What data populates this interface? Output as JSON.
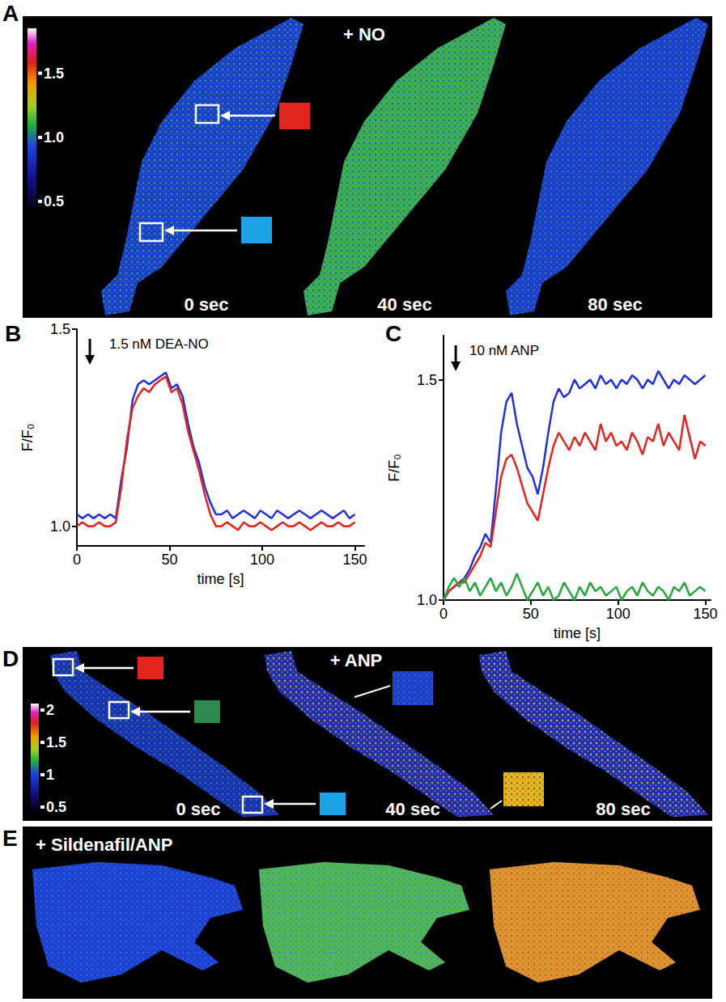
{
  "chart_data": [
    {
      "panel": "B",
      "type": "line",
      "title": "1.5 nM DEA-NO",
      "x_label": "time [s]",
      "y_label": "F/F₀",
      "stimulus_time": 7,
      "grid": false,
      "xlim": [
        0,
        155
      ],
      "xticks": [
        0,
        50,
        100,
        150
      ],
      "ylim": [
        0.95,
        1.5
      ],
      "yticks": [
        {
          "value": 1,
          "label": "1.0"
        },
        {
          "value": 1.5,
          "label": "1.5"
        }
      ],
      "x": [
        0,
        3,
        6,
        9,
        12,
        15,
        18,
        21,
        24,
        27,
        30,
        33,
        36,
        39,
        42,
        45,
        48,
        51,
        54,
        57,
        60,
        63,
        66,
        69,
        72,
        75,
        78,
        81,
        84,
        87,
        90,
        93,
        96,
        99,
        102,
        105,
        108,
        111,
        114,
        117,
        120,
        123,
        126,
        129,
        132,
        135,
        138,
        141,
        144,
        147,
        150
      ],
      "series": [
        {
          "color": "#1f2fe6",
          "values": [
            1.03,
            1.02,
            1.03,
            1.02,
            1.03,
            1.02,
            1.03,
            1.02,
            1.12,
            1.2,
            1.32,
            1.36,
            1.37,
            1.36,
            1.37,
            1.38,
            1.39,
            1.35,
            1.36,
            1.33,
            1.26,
            1.2,
            1.16,
            1.1,
            1.06,
            1.03,
            1.03,
            1.04,
            1.02,
            1.03,
            1.04,
            1.03,
            1.02,
            1.04,
            1.03,
            1.02,
            1.04,
            1.03,
            1.02,
            1.03,
            1.04,
            1.03,
            1.02,
            1.03,
            1.04,
            1.03,
            1.02,
            1.03,
            1.04,
            1.02,
            1.03
          ]
        },
        {
          "color": "#e8221c",
          "values": [
            1.0,
            1.01,
            1.0,
            1.0,
            1.01,
            1.0,
            1.0,
            1.01,
            1.1,
            1.22,
            1.3,
            1.33,
            1.35,
            1.34,
            1.36,
            1.37,
            1.38,
            1.34,
            1.35,
            1.31,
            1.24,
            1.19,
            1.14,
            1.08,
            1.03,
            1.0,
            1.0,
            1.01,
            1.0,
            0.99,
            1.01,
            1.0,
            1.0,
            1.01,
            1.0,
            0.99,
            1.0,
            1.01,
            1.0,
            1.0,
            1.01,
            1.0,
            0.99,
            1.0,
            1.01,
            1.0,
            1.0,
            1.01,
            1.0,
            1.0,
            1.01
          ]
        }
      ]
    },
    {
      "panel": "C",
      "type": "line",
      "title": "10 nM ANP",
      "x_label": "time [s]",
      "y_label": "F/F₀",
      "stimulus_time": 7,
      "grid": false,
      "xlim": [
        0,
        153
      ],
      "xticks": [
        0,
        50,
        100,
        150
      ],
      "ylim": [
        1.0,
        1.6
      ],
      "yticks": [
        {
          "value": 1,
          "label": "1.0"
        },
        {
          "value": 1.5,
          "label": "1.5"
        }
      ],
      "x": [
        0,
        3,
        6,
        9,
        12,
        15,
        18,
        21,
        24,
        27,
        30,
        33,
        36,
        39,
        42,
        45,
        48,
        51,
        54,
        57,
        60,
        63,
        66,
        69,
        72,
        75,
        78,
        81,
        84,
        87,
        90,
        93,
        96,
        99,
        102,
        105,
        108,
        111,
        114,
        117,
        120,
        123,
        126,
        129,
        132,
        135,
        138,
        141,
        144,
        147,
        150
      ],
      "series": [
        {
          "color": "#1f2fe6",
          "values": [
            1.0,
            1.02,
            1.03,
            1.04,
            1.05,
            1.07,
            1.1,
            1.12,
            1.15,
            1.13,
            1.25,
            1.38,
            1.45,
            1.47,
            1.4,
            1.35,
            1.3,
            1.28,
            1.24,
            1.3,
            1.38,
            1.45,
            1.48,
            1.46,
            1.47,
            1.5,
            1.48,
            1.49,
            1.5,
            1.48,
            1.51,
            1.49,
            1.5,
            1.48,
            1.5,
            1.49,
            1.51,
            1.5,
            1.48,
            1.5,
            1.49,
            1.52,
            1.5,
            1.48,
            1.5,
            1.49,
            1.51,
            1.5,
            1.49,
            1.5,
            1.51
          ]
        },
        {
          "color": "#e8221c",
          "values": [
            1.0,
            1.02,
            1.03,
            1.04,
            1.04,
            1.06,
            1.08,
            1.1,
            1.13,
            1.12,
            1.2,
            1.28,
            1.32,
            1.33,
            1.3,
            1.26,
            1.22,
            1.2,
            1.18,
            1.24,
            1.3,
            1.35,
            1.38,
            1.36,
            1.34,
            1.37,
            1.35,
            1.38,
            1.36,
            1.34,
            1.4,
            1.36,
            1.38,
            1.35,
            1.36,
            1.34,
            1.38,
            1.36,
            1.33,
            1.37,
            1.36,
            1.4,
            1.35,
            1.38,
            1.36,
            1.34,
            1.42,
            1.37,
            1.32,
            1.36,
            1.35
          ]
        },
        {
          "color": "#23a83a",
          "values": [
            1.0,
            1.03,
            1.05,
            1.03,
            1.05,
            1.02,
            1.04,
            1.01,
            1.03,
            1.05,
            1.02,
            1.04,
            1.01,
            1.03,
            1.06,
            1.03,
            1.0,
            1.02,
            1.04,
            1.01,
            1.03,
            1.0,
            1.01,
            1.04,
            1.02,
            1.0,
            1.03,
            1.01,
            1.04,
            1.02,
            1.03,
            1.01,
            1.02,
            1.03,
            1.0,
            1.02,
            1.03,
            1.01,
            1.04,
            1.02,
            1.01,
            1.03,
            1.02,
            1.0,
            1.03,
            1.02,
            1.04,
            1.01,
            1.02,
            1.03,
            1.02
          ]
        }
      ]
    }
  ],
  "images": [
    {
      "panel": "A",
      "title": "+ NO",
      "colorbar": {
        "range": [
          0.4,
          1.85
        ],
        "ticks": [
          {
            "value": 0.5,
            "label": "0.5"
          },
          {
            "value": 1,
            "label": "1.0"
          },
          {
            "value": 1.5,
            "label": "1.5"
          }
        ]
      },
      "frames": [
        {
          "label": "0 sec",
          "colors": [
            "#1c3ad4",
            "#2fa85a"
          ]
        },
        {
          "label": "40 sec",
          "colors": [
            "#3db544",
            "#2a56d8"
          ]
        },
        {
          "label": "80 sec",
          "colors": [
            "#1c3ad4",
            "#2b8f7a"
          ]
        }
      ],
      "rois": [
        {
          "color": "#e3261d"
        },
        {
          "color": "#1aa3e6"
        }
      ]
    },
    {
      "panel": "D",
      "title": "+ ANP",
      "colorbar": {
        "range": [
          0.4,
          2.1
        ],
        "ticks": [
          0.5,
          1,
          1.5,
          2
        ]
      },
      "frames": [
        {
          "label": "0 sec",
          "colors": [
            "#1a2db8",
            "#2b8a6a"
          ]
        },
        {
          "label": "40 sec",
          "colors": [
            "#1a2db8",
            "#d8a020"
          ]
        },
        {
          "label": "80 sec",
          "colors": [
            "#1a2db8",
            "#e0b030"
          ]
        }
      ],
      "rois": [
        {
          "color": "#e3261d"
        },
        {
          "color": "#2e8b4f"
        },
        {
          "color": "#1aa3e6"
        }
      ],
      "insets": [
        {
          "colors": [
            "#1f3ec8",
            "#2a6ad8"
          ]
        },
        {
          "colors": [
            "#d8c020",
            "#e0302a"
          ]
        }
      ]
    },
    {
      "panel": "E",
      "title": "+ Sildenafil/ANP",
      "frames": [
        {
          "colors": [
            "#1d3fd3",
            "#2a6fd0"
          ]
        },
        {
          "colors": [
            "#55b84a",
            "#2a8fd0"
          ]
        },
        {
          "colors": [
            "#d89a30",
            "#e0522a"
          ]
        }
      ]
    }
  ]
}
